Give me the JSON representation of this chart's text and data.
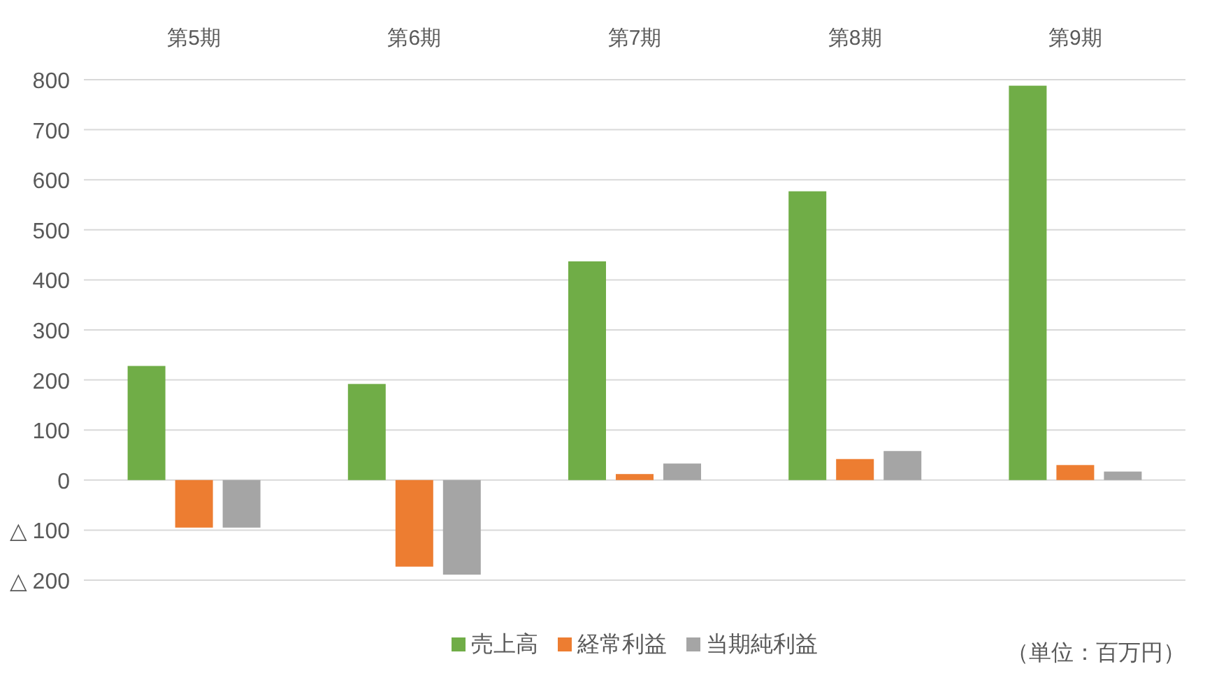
{
  "chart_data": {
    "type": "bar",
    "categories": [
      "第5期",
      "第6期",
      "第7期",
      "第8期",
      "第9期"
    ],
    "series": [
      {
        "name": "売上高",
        "color": "#70ad47",
        "values": [
          228,
          192,
          437,
          577,
          788
        ]
      },
      {
        "name": "経常利益",
        "color": "#ed7d31",
        "values": [
          -95,
          -173,
          12,
          42,
          30
        ]
      },
      {
        "name": "当期純利益",
        "color": "#a5a5a5",
        "values": [
          -95,
          -189,
          33,
          58,
          17
        ]
      }
    ],
    "ylim": [
      -200,
      800
    ],
    "yticks": [
      {
        "value": -200,
        "label": "△ 200"
      },
      {
        "value": -100,
        "label": "△ 100"
      },
      0,
      100,
      200,
      300,
      400,
      500,
      600,
      700,
      800
    ],
    "grid": "y",
    "legend": "bottom",
    "annotations": [
      "（単位：百万円）"
    ]
  }
}
